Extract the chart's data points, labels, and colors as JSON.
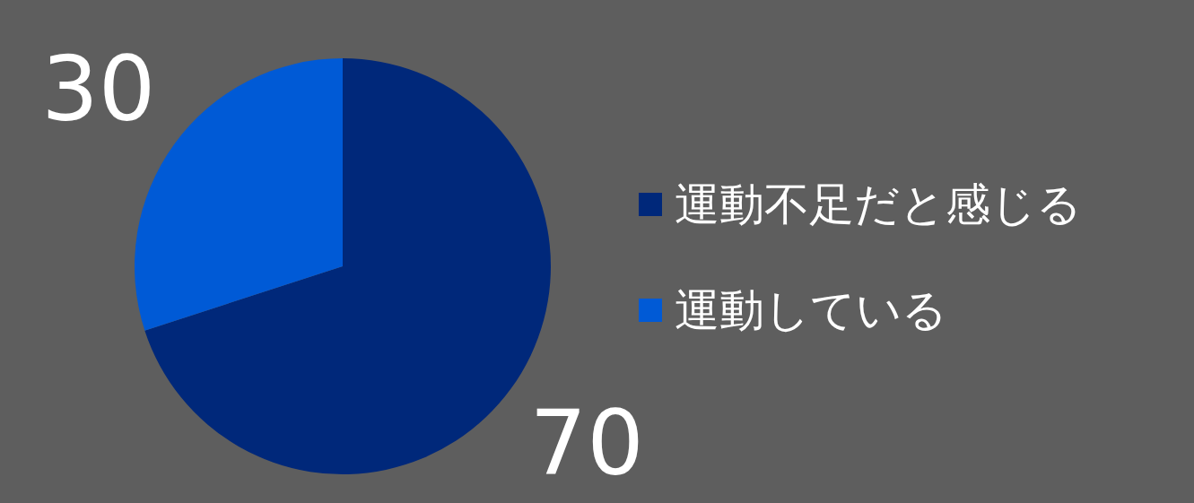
{
  "chart_data": {
    "type": "pie",
    "categories": [
      "運動不足だと感じる",
      "運動している"
    ],
    "values": [
      70,
      30
    ],
    "colors": [
      "#00287a",
      "#005ad6"
    ],
    "data_labels": true,
    "legend": "right"
  }
}
